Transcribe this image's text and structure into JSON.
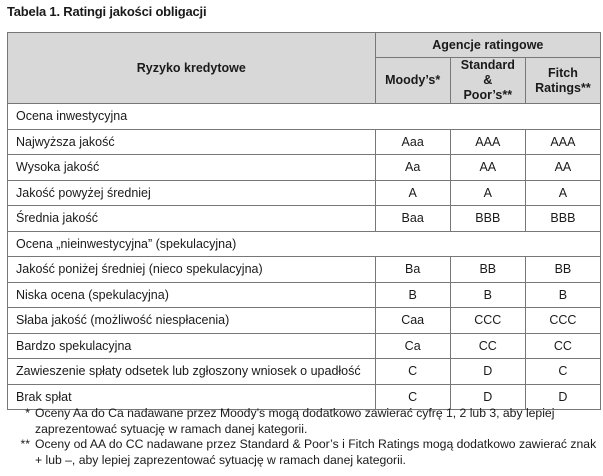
{
  "title": "Tabela 1. Ratingi jakości obligacji",
  "header": {
    "risk": "Ryzyko kredytowe",
    "agencies": "Agencje ratingowe",
    "columns": [
      "Moody’s*",
      "Standard & Poor’s**",
      "Fitch Ratings**"
    ]
  },
  "rows": [
    {
      "section": "Ocena inwestycyjna"
    },
    {
      "label": "Najwyższa jakość",
      "values": [
        "Aaa",
        "AAA",
        "AAA"
      ]
    },
    {
      "label": "Wysoka jakość",
      "values": [
        "Aa",
        "AA",
        "AA"
      ]
    },
    {
      "label": "Jakość powyżej średniej",
      "values": [
        "A",
        "A",
        "A"
      ]
    },
    {
      "label": "Średnia jakość",
      "values": [
        "Baa",
        "BBB",
        "BBB"
      ]
    },
    {
      "section": "Ocena „nieinwestycyjna” (spekulacyjna)"
    },
    {
      "label": "Jakość poniżej średniej (nieco spekulacyjna)",
      "values": [
        "Ba",
        "BB",
        "BB"
      ]
    },
    {
      "label": "Niska ocena (spekulacyjna)",
      "values": [
        "B",
        "B",
        "B"
      ]
    },
    {
      "label": "Słaba jakość (możliwość niespłacenia)",
      "values": [
        "Caa",
        "CCC",
        "CCC"
      ]
    },
    {
      "label": "Bardzo spekulacyjna",
      "values": [
        "Ca",
        "CC",
        "CC"
      ]
    },
    {
      "label": "Zawieszenie spłaty odsetek lub zgłoszony wniosek o upadłość",
      "values": [
        "C",
        "D",
        "C"
      ]
    },
    {
      "label": "Brak spłat",
      "values": [
        "C",
        "D",
        "D"
      ]
    }
  ],
  "notes": [
    {
      "mark": "*",
      "text": "Oceny Aa do Ca nadawane przez Moody’s mogą dodatkowo zawierać cyfrę 1, 2 lub 3, aby lepiej zaprezentować sytuację w ramach danej kategorii."
    },
    {
      "mark": "**",
      "text": "Oceny od AA do CC nadawane przez Standard & Poor’s i Fitch Ratings mogą dodatkowo zawierać znak + lub –, aby lepiej zaprezentować sytuację w ramach danej kategorii."
    }
  ]
}
